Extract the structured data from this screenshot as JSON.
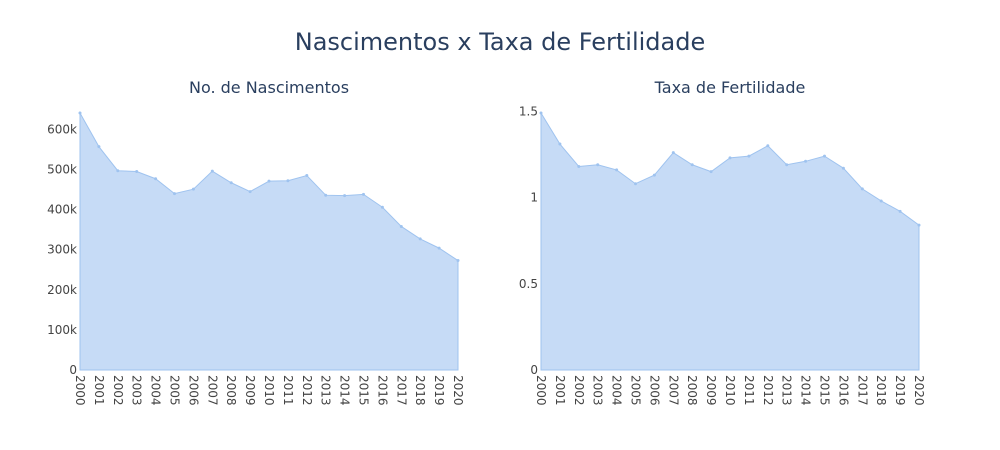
{
  "title": "Nascimentos x Taxa de Fertilidade",
  "chart_data": [
    {
      "type": "area",
      "title": "No. de Nascimentos",
      "xlabel": "",
      "ylabel": "",
      "x": [
        "2000",
        "2001",
        "2002",
        "2003",
        "2004",
        "2005",
        "2006",
        "2007",
        "2008",
        "2009",
        "2010",
        "2011",
        "2012",
        "2013",
        "2014",
        "2015",
        "2016",
        "2017",
        "2018",
        "2019",
        "2020"
      ],
      "values": [
        641000,
        557000,
        497000,
        495000,
        477000,
        440000,
        451000,
        496000,
        467000,
        445000,
        471000,
        472000,
        485000,
        436000,
        435000,
        438000,
        406000,
        358000,
        327000,
        304000,
        273000
      ],
      "ylim": [
        0,
        641000
      ],
      "yticks": [
        0,
        100000,
        200000,
        300000,
        400000,
        500000,
        600000
      ],
      "ytick_labels": [
        "0",
        "100k",
        "200k",
        "300k",
        "400k",
        "500k",
        "600k"
      ],
      "grid": false,
      "fill_color": "#c6dbf6",
      "line_color": "#9fc3ef"
    },
    {
      "type": "area",
      "title": "Taxa de Fertilidade",
      "xlabel": "",
      "ylabel": "",
      "x": [
        "2000",
        "2001",
        "2002",
        "2003",
        "2004",
        "2005",
        "2006",
        "2007",
        "2008",
        "2009",
        "2010",
        "2011",
        "2012",
        "2013",
        "2014",
        "2015",
        "2016",
        "2017",
        "2018",
        "2019",
        "2020"
      ],
      "values": [
        1.49,
        1.31,
        1.18,
        1.19,
        1.16,
        1.08,
        1.13,
        1.26,
        1.19,
        1.15,
        1.23,
        1.24,
        1.3,
        1.19,
        1.21,
        1.24,
        1.17,
        1.05,
        0.98,
        0.92,
        0.84
      ],
      "ylim": [
        0,
        1.49
      ],
      "yticks": [
        0,
        0.5,
        1,
        1.5
      ],
      "ytick_labels": [
        "0",
        "0.5",
        "1",
        "1.5"
      ],
      "grid": false,
      "fill_color": "#c6dbf6",
      "line_color": "#9fc3ef"
    }
  ]
}
